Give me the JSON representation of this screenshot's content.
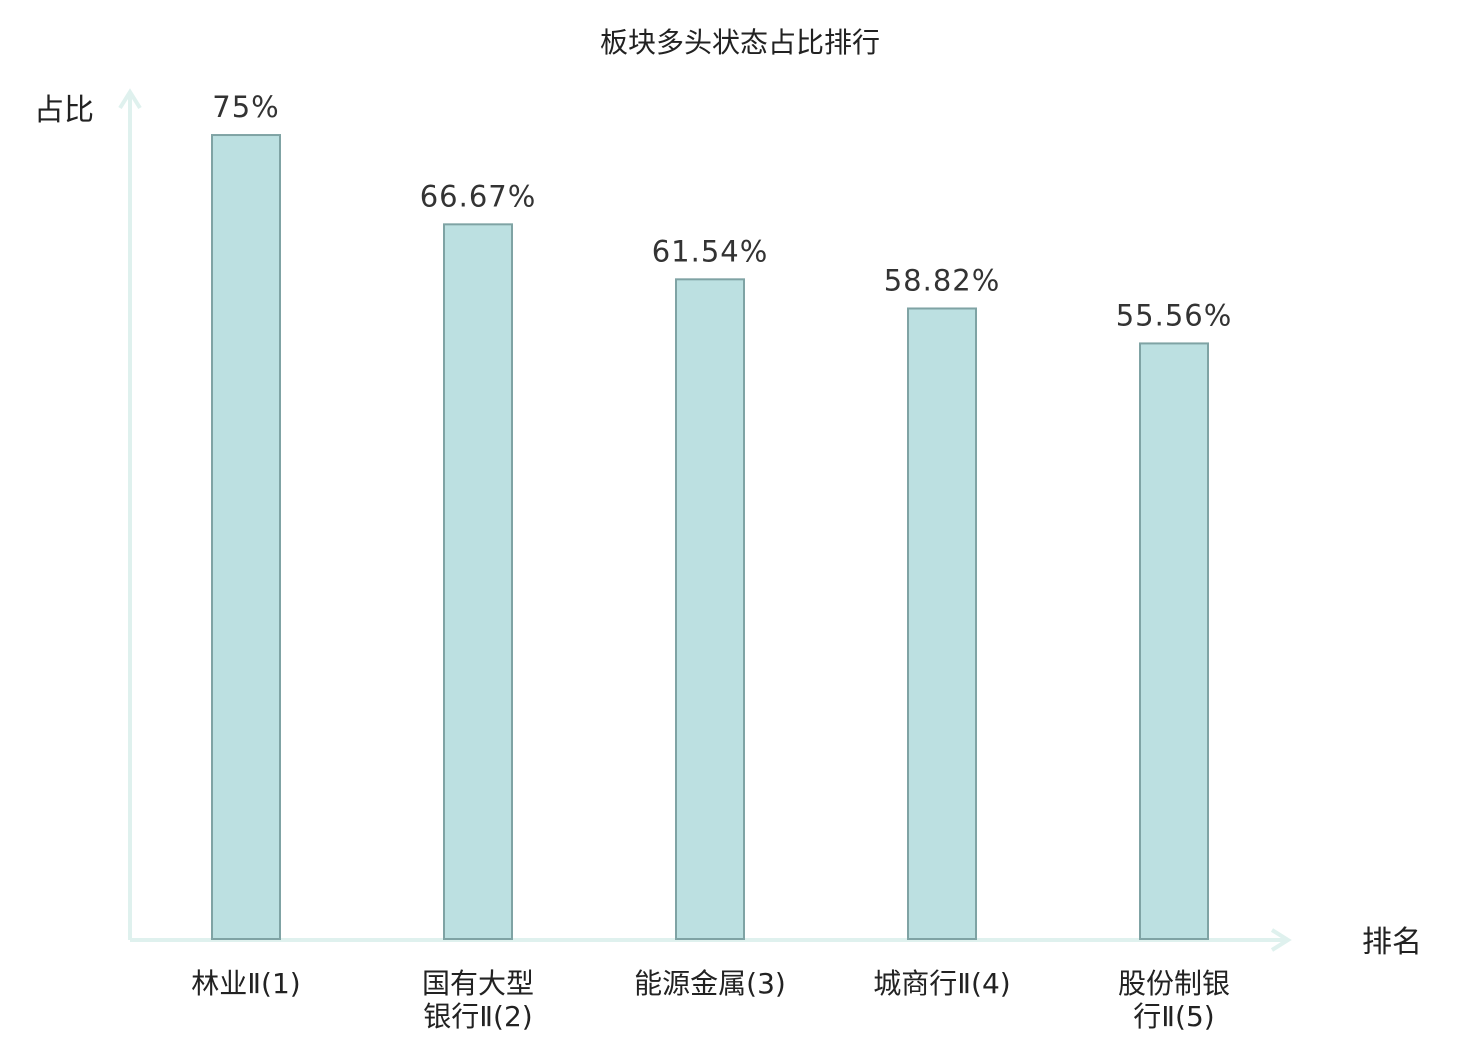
{
  "chart_data": {
    "type": "bar",
    "title": "板块多头状态占比排行",
    "xlabel": "排名",
    "ylabel": "占比",
    "ylim": [
      0,
      82
    ],
    "grid": false,
    "categories": [
      {
        "lines": [
          "林业Ⅱ(1)"
        ],
        "highlight": true
      },
      {
        "lines": [
          "国有大型",
          "银行Ⅱ(2)"
        ],
        "highlight": false
      },
      {
        "lines": [
          "能源金属(3)"
        ],
        "highlight": false
      },
      {
        "lines": [
          "城商行Ⅱ(4)"
        ],
        "highlight": false
      },
      {
        "lines": [
          "股份制银",
          "行Ⅱ(5)"
        ],
        "highlight": false
      }
    ],
    "values": [
      75,
      66.67,
      61.54,
      58.82,
      55.56
    ],
    "value_labels": [
      "75%",
      "66.67%",
      "61.54%",
      "58.82%",
      "55.56%"
    ],
    "colors": {
      "bar_fill": "#bce0e1",
      "bar_stroke": "#7fa3a4",
      "axis": "#dff1ee",
      "highlight_label": "#dd1111",
      "text": "#222222"
    }
  }
}
